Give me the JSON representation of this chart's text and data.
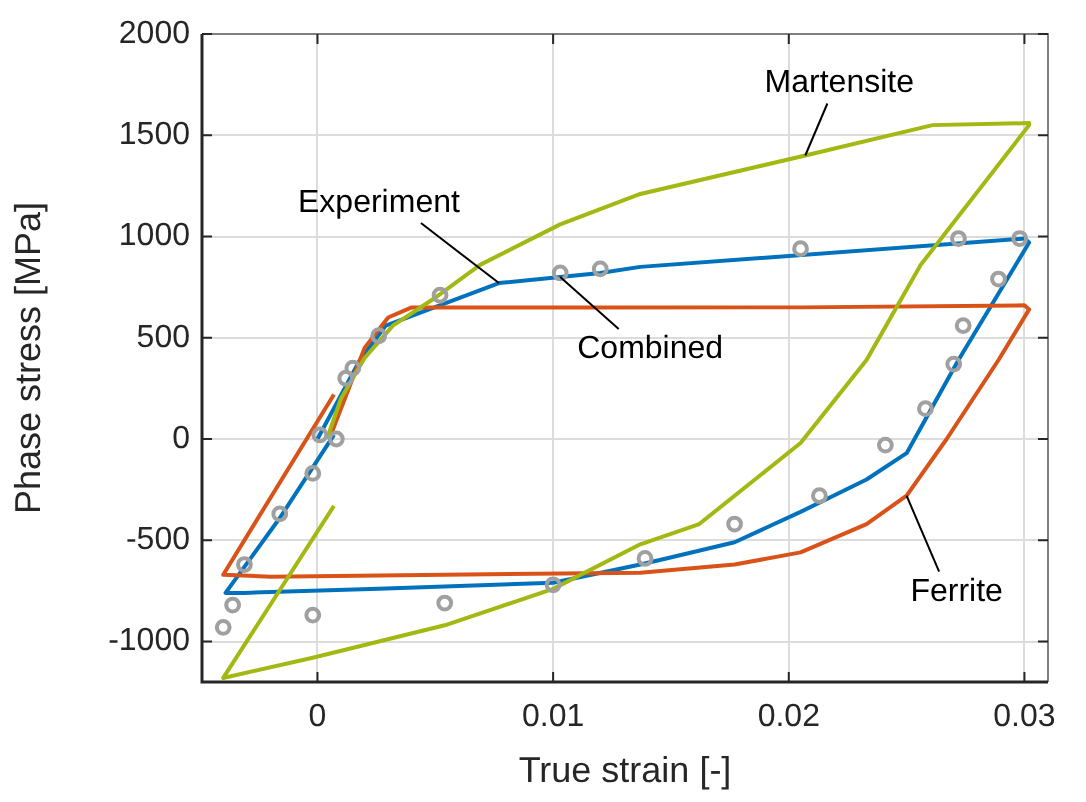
{
  "chart_data": {
    "type": "line",
    "xlabel": "True strain [-]",
    "ylabel": "Phase stress [MPa]",
    "xlim": [
      -0.0049,
      0.031
    ],
    "ylim": [
      -1200,
      2000
    ],
    "xticks": [
      0,
      0.01,
      0.02,
      0.03
    ],
    "yticks": [
      -1000,
      -500,
      0,
      500,
      1000,
      1500,
      2000
    ],
    "grid": true,
    "legend": false,
    "line_style": "solid",
    "series": [
      {
        "color": "#a3b812",
        "x": [
          0.0007,
          -0.004,
          -0.0002,
          0.0054,
          0.01,
          0.0137,
          0.0162,
          0.0205,
          0.0233,
          0.0256,
          0.0302,
          0.0302,
          0.0261,
          0.0207,
          0.0137,
          0.0103,
          0.0069,
          0.0049,
          0.0032,
          0.002,
          0.001,
          0.0004
        ],
        "values": [
          -330,
          -1180,
          -1080,
          -920,
          -740,
          -520,
          -420,
          -20,
          390,
          860,
          1550,
          1560,
          1550,
          1400,
          1210,
          1060,
          860,
          690,
          560,
          400,
          200,
          0
        ]
      },
      {
        "color": "#d95319",
        "x": [
          0.0007,
          -0.004,
          -0.002,
          0.0137,
          0.0177,
          0.0205,
          0.0233,
          0.025,
          0.0267,
          0.0289,
          0.0302,
          0.03,
          0.0205,
          0.012,
          0.004,
          0.003,
          0.002,
          0.001,
          0.0005
        ],
        "values": [
          220,
          -670,
          -680,
          -660,
          -620,
          -560,
          -420,
          -280,
          0,
          390,
          640,
          660,
          650,
          650,
          650,
          600,
          450,
          150,
          0
        ]
      },
      {
        "type": "scatter",
        "marker": "circle",
        "color": "#a0a0a0",
        "x": [
          0.0008,
          -0.0002,
          -0.0016,
          -0.0031,
          -0.0036,
          -0.004,
          -0.0002,
          0.0054,
          0.01,
          0.0139,
          0.0177,
          0.0213,
          0.0241,
          0.0258,
          0.027,
          0.0274,
          0.0289,
          0.0298,
          0.0272,
          0.0205,
          0.012,
          0.0103,
          0.0052,
          0.0026,
          0.0015,
          0.0012,
          0.0001
        ],
        "values": [
          0,
          -170,
          -370,
          -620,
          -820,
          -930,
          -870,
          -810,
          -720,
          -590,
          -420,
          -280,
          -30,
          150,
          370,
          560,
          790,
          990,
          990,
          940,
          840,
          820,
          710,
          510,
          350,
          300,
          20
        ]
      },
      {
        "color": "#0072bd",
        "x": [
          0.0007,
          -0.0016,
          -0.0039,
          -0.0031,
          0.0026,
          0.01,
          0.0137,
          0.0148,
          0.0177,
          0.0205,
          0.0233,
          0.025,
          0.0272,
          0.0302,
          0.03,
          0.0137,
          0.012,
          0.0103,
          0.0077,
          0.0029,
          0.0018,
          0
        ],
        "values": [
          20,
          -390,
          -760,
          -760,
          -740,
          -710,
          -620,
          -590,
          -510,
          -360,
          -200,
          -70,
          390,
          970,
          990,
          850,
          820,
          800,
          770,
          560,
          390,
          0
        ]
      }
    ],
    "annotations": [
      {
        "text": "Martensite",
        "x": 0.0207,
        "y": 1400
      },
      {
        "text": "Experiment",
        "x": 0.0077,
        "y": 770
      },
      {
        "text": "Combined",
        "x": 0.0103,
        "y": 800
      },
      {
        "text": "Ferrite",
        "x": 0.025,
        "y": -280
      }
    ]
  }
}
